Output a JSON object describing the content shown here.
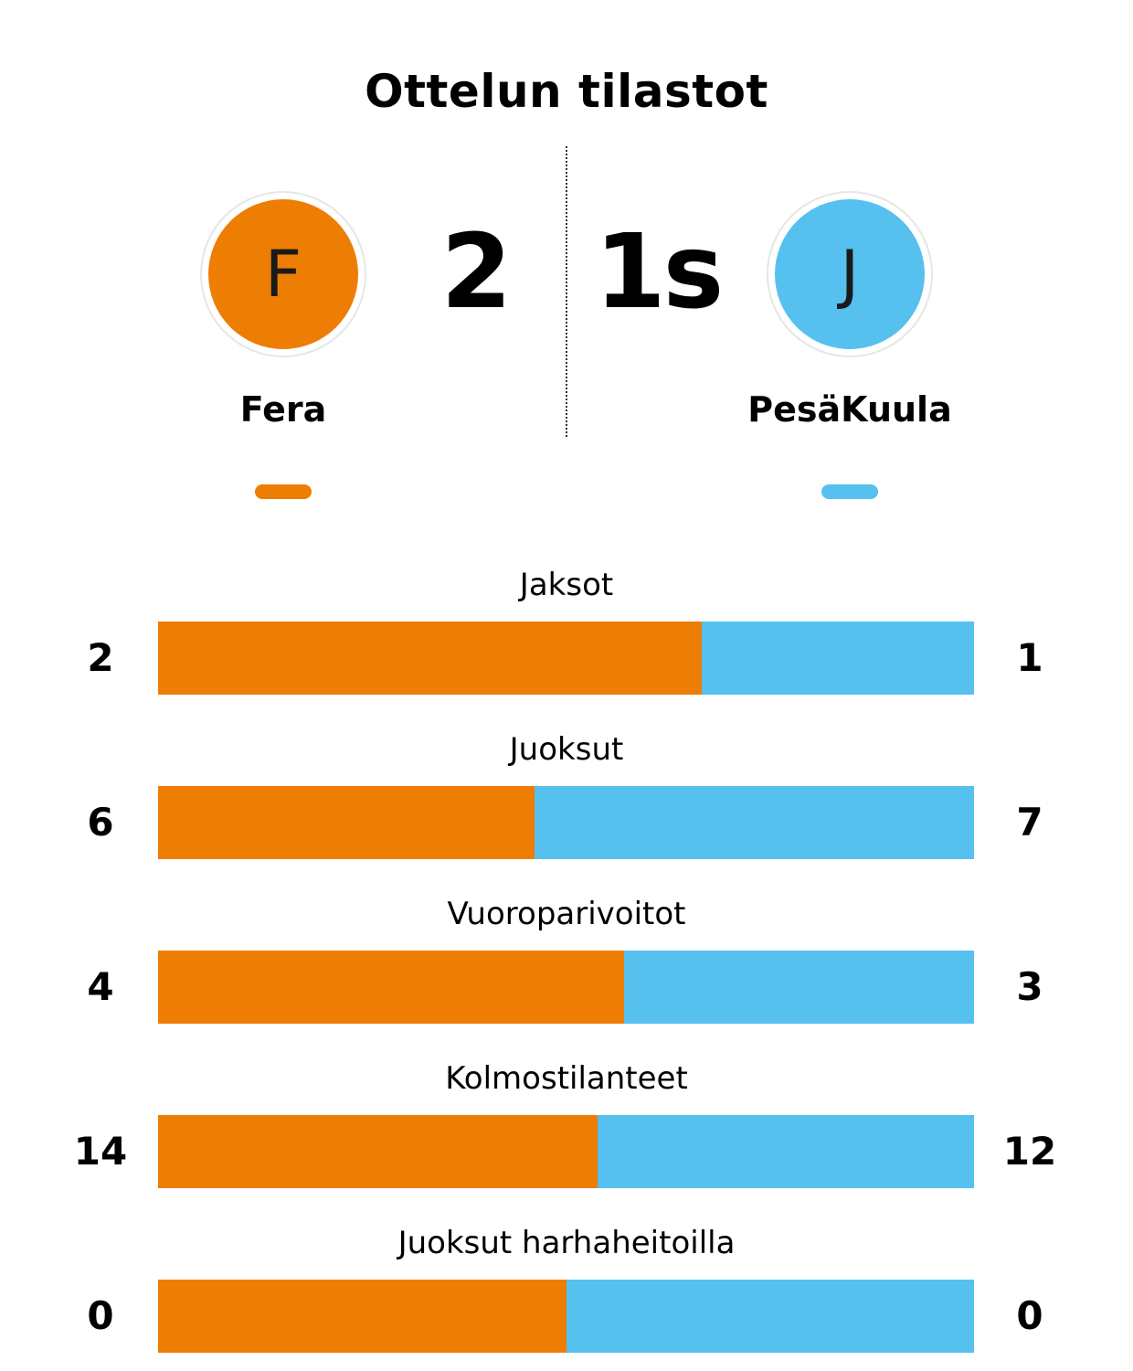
{
  "title": "Ottelun tilastot",
  "home": {
    "name": "Fera",
    "initial": "F",
    "score": "2",
    "color": "#EE7D03"
  },
  "away": {
    "name": "PesäKuula",
    "initial": "J",
    "score": "1s",
    "color": "#56C0EF"
  },
  "chart_data": {
    "type": "bar",
    "orientation": "horizontal",
    "stacked": "normalized",
    "categories": [
      "Jaksot",
      "Juoksut",
      "Vuoroparivoitot",
      "Kolmostilanteet",
      "Juoksut harhaheitoilla"
    ],
    "series": [
      {
        "name": "Fera",
        "values": [
          2,
          6,
          4,
          14,
          0
        ]
      },
      {
        "name": "PesäKuula",
        "values": [
          1,
          7,
          3,
          12,
          0
        ]
      }
    ]
  }
}
